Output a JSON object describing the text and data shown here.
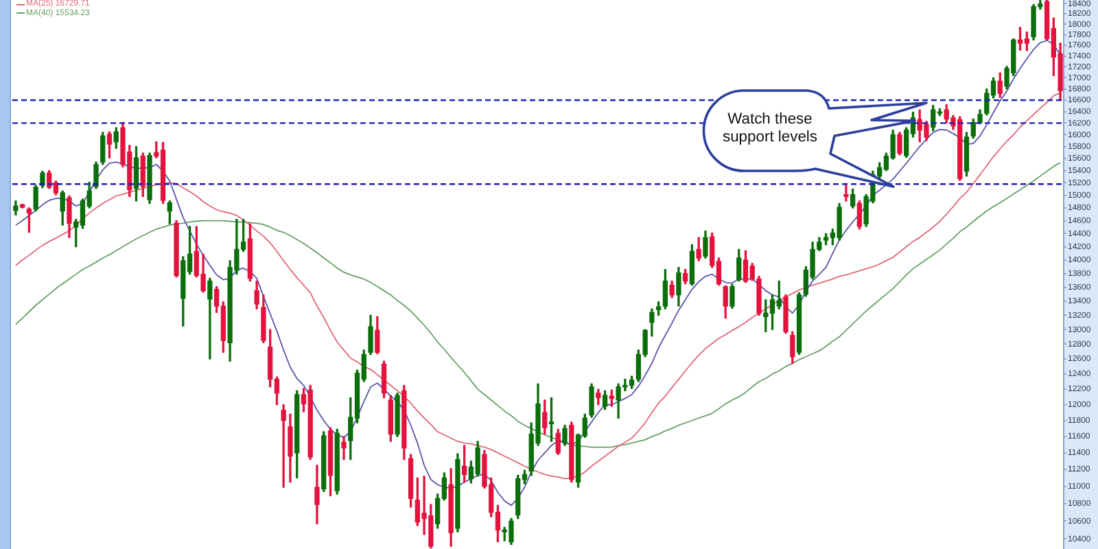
{
  "chart_data": {
    "type": "candlestick",
    "categories": [
      null,
      null,
      null,
      null,
      null,
      null,
      null,
      null,
      null,
      null,
      null,
      null,
      null,
      null,
      null,
      null,
      null,
      null,
      null,
      null,
      null,
      null,
      null,
      null,
      null,
      null,
      null,
      null,
      null,
      null,
      null,
      null,
      null,
      null,
      null,
      null,
      null,
      null,
      null,
      null,
      null,
      null,
      null,
      null,
      null,
      null,
      null,
      null,
      null,
      null,
      null,
      null,
      null,
      null,
      null,
      null,
      null,
      null,
      null,
      null,
      null,
      null,
      null,
      null,
      null,
      null,
      null,
      null,
      null,
      null,
      null,
      null,
      null,
      null,
      null,
      null,
      null,
      null,
      null,
      null,
      null,
      null,
      null,
      null,
      null,
      null,
      null,
      null,
      null,
      null,
      null,
      null,
      null,
      null,
      null,
      null,
      null,
      null,
      null,
      null,
      null,
      null,
      null,
      null,
      null,
      null,
      null,
      null,
      null,
      null,
      null,
      null,
      null,
      null,
      null,
      null,
      null,
      null,
      null,
      null,
      null,
      null,
      null,
      null,
      null,
      null,
      null,
      null,
      null,
      null,
      null,
      null,
      null,
      null,
      null,
      null,
      null,
      null,
      null,
      null,
      null,
      null,
      null,
      null,
      null,
      null,
      null,
      null,
      null,
      null,
      null,
      null,
      null,
      null,
      null,
      null,
      null
    ],
    "ohlc": [
      [
        14760,
        14910,
        14690,
        14830
      ],
      [
        14850,
        14860,
        14800,
        14810
      ],
      [
        14780,
        14800,
        14420,
        14720
      ],
      [
        14780,
        15160,
        14750,
        15130
      ],
      [
        15160,
        15390,
        15120,
        15360
      ],
      [
        15360,
        15400,
        15110,
        15130
      ],
      [
        15200,
        15230,
        15010,
        15040
      ],
      [
        14750,
        15070,
        14530,
        15040
      ],
      [
        14960,
        14990,
        14340,
        14560
      ],
      [
        14500,
        14620,
        14200,
        14580
      ],
      [
        14530,
        14940,
        14480,
        14910
      ],
      [
        14830,
        15210,
        14800,
        15070
      ],
      [
        15140,
        15540,
        15110,
        15500
      ],
      [
        15540,
        16040,
        15500,
        15980
      ],
      [
        16010,
        16050,
        15610,
        15840
      ],
      [
        15880,
        16120,
        15770,
        16050
      ],
      [
        16120,
        16210,
        15460,
        15500
      ],
      [
        15710,
        15820,
        14980,
        15090
      ],
      [
        15110,
        15800,
        14910,
        15610
      ],
      [
        15640,
        15690,
        14980,
        15140
      ],
      [
        14930,
        15690,
        14870,
        15650
      ],
      [
        15700,
        15880,
        15610,
        15640
      ],
      [
        15740,
        15870,
        14870,
        14920
      ],
      [
        14750,
        14910,
        14550,
        14880
      ],
      [
        14560,
        14600,
        13750,
        13770
      ],
      [
        13440,
        14050,
        13050,
        13990
      ],
      [
        13830,
        14510,
        13790,
        14090
      ],
      [
        14130,
        14510,
        13750,
        13770
      ],
      [
        13790,
        14090,
        13530,
        13550
      ],
      [
        13430,
        13730,
        12600,
        13690
      ],
      [
        13570,
        13610,
        13240,
        13330
      ],
      [
        13330,
        13390,
        12690,
        12850
      ],
      [
        12820,
        13990,
        12570,
        13890
      ],
      [
        13850,
        14620,
        13790,
        14160
      ],
      [
        14160,
        14620,
        14130,
        14270
      ],
      [
        14320,
        14550,
        13690,
        13730
      ],
      [
        13550,
        13690,
        13290,
        13360
      ],
      [
        13310,
        13490,
        12820,
        12850
      ],
      [
        12760,
        13000,
        12230,
        12330
      ],
      [
        12330,
        12360,
        12000,
        12150
      ],
      [
        11930,
        12000,
        10990,
        11800
      ],
      [
        11720,
        11880,
        11050,
        11360
      ],
      [
        11400,
        12180,
        11100,
        12130
      ],
      [
        12130,
        12210,
        11910,
        12010
      ],
      [
        12190,
        12250,
        11320,
        11350
      ],
      [
        10990,
        11250,
        10570,
        10790
      ],
      [
        10970,
        11660,
        10940,
        11610
      ],
      [
        11670,
        11710,
        10890,
        11130
      ],
      [
        10950,
        11690,
        10910,
        11640
      ],
      [
        11530,
        11600,
        11320,
        11460
      ],
      [
        11550,
        12090,
        11320,
        11840
      ],
      [
        11830,
        12450,
        11770,
        12410
      ],
      [
        12330,
        12720,
        12300,
        12660
      ],
      [
        12690,
        13200,
        12660,
        13040
      ],
      [
        12990,
        13180,
        12670,
        12690
      ],
      [
        12530,
        12570,
        12090,
        12150
      ],
      [
        12060,
        12120,
        11540,
        11630
      ],
      [
        11630,
        12150,
        11600,
        12120
      ],
      [
        12180,
        12250,
        11320,
        11460
      ],
      [
        11330,
        11380,
        10760,
        10860
      ],
      [
        10840,
        11100,
        10550,
        10590
      ],
      [
        10690,
        11120,
        10450,
        10630
      ],
      [
        10660,
        10790,
        10300,
        10320
      ],
      [
        10570,
        10910,
        10520,
        10860
      ],
      [
        10860,
        11160,
        10840,
        11100
      ],
      [
        11020,
        11210,
        10320,
        10470
      ],
      [
        10520,
        11390,
        10480,
        11320
      ],
      [
        11240,
        11490,
        11050,
        11140
      ],
      [
        11090,
        11300,
        11040,
        11230
      ],
      [
        11150,
        11540,
        11120,
        11460
      ],
      [
        11380,
        11430,
        10980,
        11000
      ],
      [
        11020,
        11100,
        10650,
        10700
      ],
      [
        10700,
        10780,
        10370,
        10500
      ],
      [
        10480,
        10530,
        10380,
        10500
      ],
      [
        10370,
        10630,
        10340,
        10600
      ],
      [
        10670,
        11130,
        10630,
        11090
      ],
      [
        11080,
        11190,
        11030,
        11140
      ],
      [
        11180,
        11770,
        11130,
        11630
      ],
      [
        11520,
        12270,
        11490,
        12010
      ],
      [
        11900,
        12060,
        11630,
        11710
      ],
      [
        11760,
        12090,
        11540,
        11780
      ],
      [
        11640,
        11690,
        11380,
        11400
      ],
      [
        11520,
        11740,
        11490,
        11700
      ],
      [
        11740,
        11780,
        11050,
        11080
      ],
      [
        11050,
        11630,
        10990,
        11620
      ],
      [
        11610,
        11880,
        11590,
        11830
      ],
      [
        11870,
        12270,
        11840,
        12230
      ],
      [
        12150,
        12200,
        12000,
        12090
      ],
      [
        11980,
        12180,
        11940,
        12120
      ],
      [
        12110,
        12190,
        11980,
        12080
      ],
      [
        12060,
        12270,
        11830,
        12230
      ],
      [
        12230,
        12330,
        12180,
        12250
      ],
      [
        12250,
        12370,
        12210,
        12320
      ],
      [
        12330,
        12720,
        12300,
        12660
      ],
      [
        12660,
        13000,
        12630,
        12990
      ],
      [
        13100,
        13290,
        12910,
        13240
      ],
      [
        13280,
        13390,
        13200,
        13320
      ],
      [
        13330,
        13860,
        13290,
        13690
      ],
      [
        13630,
        13690,
        13450,
        13490
      ],
      [
        13490,
        13890,
        13330,
        13810
      ],
      [
        13800,
        13860,
        13650,
        13690
      ],
      [
        13650,
        14230,
        13630,
        14130
      ],
      [
        14160,
        14340,
        13990,
        14030
      ],
      [
        14060,
        14440,
        14030,
        14340
      ],
      [
        14350,
        14410,
        13890,
        13920
      ],
      [
        13980,
        14030,
        13630,
        13650
      ],
      [
        13610,
        13620,
        13160,
        13330
      ],
      [
        13330,
        13640,
        13300,
        13610
      ],
      [
        13710,
        14160,
        13690,
        14030
      ],
      [
        14000,
        14140,
        13670,
        13690
      ],
      [
        13910,
        13950,
        13700,
        13720
      ],
      [
        13720,
        13760,
        13200,
        13230
      ],
      [
        13180,
        13420,
        12970,
        13230
      ],
      [
        13230,
        13490,
        13000,
        13420
      ],
      [
        13330,
        13690,
        13290,
        13410
      ],
      [
        13460,
        13490,
        12950,
        12970
      ],
      [
        12920,
        12970,
        12540,
        12630
      ],
      [
        12690,
        13520,
        12660,
        13490
      ],
      [
        13500,
        13900,
        13470,
        13850
      ],
      [
        13750,
        14270,
        13720,
        14160
      ],
      [
        14160,
        14340,
        14140,
        14270
      ],
      [
        14300,
        14400,
        14230,
        14340
      ],
      [
        14340,
        14470,
        14230,
        14410
      ],
      [
        14340,
        14870,
        14300,
        14810
      ],
      [
        15010,
        15190,
        14910,
        14980
      ],
      [
        14830,
        15100,
        14800,
        15010
      ],
      [
        14870,
        14910,
        14470,
        14510
      ],
      [
        14550,
        15010,
        14510,
        14980
      ],
      [
        14910,
        15390,
        14880,
        15330
      ],
      [
        15310,
        15530,
        15280,
        15450
      ],
      [
        15420,
        15690,
        15400,
        15640
      ],
      [
        15610,
        16080,
        15590,
        16000
      ],
      [
        16000,
        16040,
        15660,
        15690
      ],
      [
        15650,
        16120,
        15620,
        16080
      ],
      [
        16020,
        16390,
        15960,
        16290
      ],
      [
        16260,
        16430,
        15880,
        16080
      ],
      [
        16180,
        16230,
        15900,
        15960
      ],
      [
        16130,
        16510,
        16070,
        16430
      ],
      [
        16370,
        16450,
        16330,
        16390
      ],
      [
        16430,
        16520,
        16200,
        16270
      ],
      [
        16290,
        16330,
        16090,
        16150
      ],
      [
        16260,
        16310,
        15240,
        15270
      ],
      [
        15390,
        16040,
        15310,
        15960
      ],
      [
        15980,
        16270,
        15940,
        16210
      ],
      [
        16210,
        16430,
        16190,
        16350
      ],
      [
        16370,
        16800,
        16340,
        16720
      ],
      [
        16690,
        17000,
        16640,
        16940
      ],
      [
        16940,
        17090,
        16650,
        16720
      ],
      [
        16850,
        17210,
        16800,
        17170
      ],
      [
        17090,
        17720,
        17040,
        17700
      ],
      [
        17700,
        17940,
        17510,
        17640
      ],
      [
        17720,
        17850,
        17500,
        17640
      ],
      [
        17760,
        18380,
        17700,
        18340
      ],
      [
        18340,
        18460,
        18290,
        18390
      ],
      [
        18440,
        18470,
        17700,
        17720
      ],
      [
        17920,
        18120,
        17040,
        17380
      ],
      [
        17440,
        17640,
        16610,
        16770
      ]
    ],
    "colors": [
      "#0b6e0b",
      "#e2143e",
      "#e2143e",
      "#0b6e0b",
      "#0b6e0b",
      "#e2143e",
      "#e2143e",
      "#0b6e0b",
      "#e2143e",
      "#0b6e0b",
      "#0b6e0b",
      "#0b6e0b",
      "#0b6e0b",
      "#0b6e0b",
      "#e2143e",
      "#0b6e0b",
      "#e2143e",
      "#e2143e",
      "#0b6e0b",
      "#e2143e",
      "#0b6e0b",
      "#e2143e",
      "#e2143e",
      "#0b6e0b",
      "#e2143e",
      "#0b6e0b",
      "#0b6e0b",
      "#e2143e",
      "#e2143e",
      "#0b6e0b",
      "#e2143e",
      "#e2143e",
      "#0b6e0b",
      "#0b6e0b",
      "#0b6e0b",
      "#e2143e",
      "#e2143e",
      "#e2143e",
      "#e2143e",
      "#e2143e",
      "#e2143e",
      "#e2143e",
      "#0b6e0b",
      "#e2143e",
      "#e2143e",
      "#e2143e",
      "#0b6e0b",
      "#e2143e",
      "#0b6e0b",
      "#e2143e",
      "#0b6e0b",
      "#0b6e0b",
      "#0b6e0b",
      "#0b6e0b",
      "#e2143e",
      "#e2143e",
      "#e2143e",
      "#0b6e0b",
      "#e2143e",
      "#e2143e",
      "#e2143e",
      "#e2143e",
      "#e2143e",
      "#0b6e0b",
      "#0b6e0b",
      "#e2143e",
      "#0b6e0b",
      "#e2143e",
      "#0b6e0b",
      "#0b6e0b",
      "#e2143e",
      "#e2143e",
      "#e2143e",
      "#0b6e0b",
      "#0b6e0b",
      "#0b6e0b",
      "#0b6e0b",
      "#0b6e0b",
      "#0b6e0b",
      "#e2143e",
      "#0b6e0b",
      "#e2143e",
      "#0b6e0b",
      "#e2143e",
      "#0b6e0b",
      "#0b6e0b",
      "#0b6e0b",
      "#e2143e",
      "#0b6e0b",
      "#e2143e",
      "#0b6e0b",
      "#0b6e0b",
      "#0b6e0b",
      "#0b6e0b",
      "#0b6e0b",
      "#0b6e0b",
      "#0b6e0b",
      "#0b6e0b",
      "#e2143e",
      "#0b6e0b",
      "#e2143e",
      "#0b6e0b",
      "#e2143e",
      "#0b6e0b",
      "#e2143e",
      "#e2143e",
      "#e2143e",
      "#0b6e0b",
      "#0b6e0b",
      "#e2143e",
      "#e2143e",
      "#e2143e",
      "#0b6e0b",
      "#0b6e0b",
      "#0b6e0b",
      "#e2143e",
      "#e2143e",
      "#0b6e0b",
      "#0b6e0b",
      "#0b6e0b",
      "#0b6e0b",
      "#0b6e0b",
      "#0b6e0b",
      "#0b6e0b",
      "#e2143e",
      "#0b6e0b",
      "#e2143e",
      "#0b6e0b",
      "#0b6e0b",
      "#0b6e0b",
      "#0b6e0b",
      "#0b6e0b",
      "#e2143e",
      "#0b6e0b",
      "#0b6e0b",
      "#e2143e",
      "#e2143e",
      "#0b6e0b",
      "#0b6e0b",
      "#e2143e",
      "#e2143e",
      "#e2143e",
      "#0b6e0b",
      "#0b6e0b",
      "#0b6e0b",
      "#0b6e0b",
      "#0b6e0b",
      "#e2143e",
      "#0b6e0b",
      "#0b6e0b",
      "#e2143e",
      "#e2143e",
      "#0b6e0b",
      "#0b6e0b",
      "#e2143e",
      "#e2143e",
      "#e2143e"
    ],
    "series": [
      {
        "type": "line",
        "color": "#5656ac",
        "values": [
          14530,
          14600,
          14680,
          14760,
          14850,
          14920,
          14950,
          14950,
          14910,
          14830,
          14870,
          15050,
          15250,
          15410,
          15520,
          15540,
          15510,
          15460,
          15440,
          15440,
          15450,
          15500,
          15390,
          15230,
          14940,
          14650,
          14440,
          14240,
          14070,
          13920,
          13780,
          13710,
          13730,
          13850,
          13880,
          13830,
          13730,
          13470,
          13220,
          12980,
          12720,
          12490,
          12340,
          12250,
          12100,
          11930,
          11800,
          11690,
          11620,
          11590,
          11660,
          11840,
          12040,
          12230,
          12280,
          12200,
          12110,
          12040,
          11930,
          11740,
          11520,
          11250,
          11080,
          11020,
          10990,
          10980,
          11000,
          11050,
          11090,
          11130,
          11140,
          11070,
          10930,
          10830,
          10780,
          10860,
          10990,
          11170,
          11310,
          11400,
          11490,
          11550,
          11520,
          11500,
          11540,
          11660,
          11780,
          11900,
          12000,
          12000,
          12040,
          12080,
          12130,
          12240,
          12380,
          12540,
          12750,
          12920,
          13090,
          13270,
          13420,
          13570,
          13680,
          13760,
          13790,
          13720,
          13670,
          13660,
          13720,
          13720,
          13720,
          13640,
          13550,
          13490,
          13460,
          13320,
          13230,
          13350,
          13540,
          13690,
          13790,
          13890,
          14100,
          14300,
          14450,
          14580,
          14700,
          14830,
          15000,
          15080,
          15170,
          15260,
          15390,
          15520,
          15660,
          15800,
          15920,
          16040,
          16090,
          16080,
          16020,
          15950,
          15840,
          15850,
          15980,
          16170,
          16380,
          16590,
          16760,
          16980,
          17170,
          17350,
          17520,
          17650,
          17690,
          17620,
          17420
        ]
      },
      {
        "type": "line",
        "name": "MA(25) 16729.71",
        "color": "#e0687a",
        "values": [
          13920,
          14000,
          14070,
          14150,
          14220,
          14280,
          14330,
          14390,
          14440,
          14530,
          14630,
          14720,
          14800,
          14870,
          14930,
          14990,
          15020,
          15050,
          15080,
          15110,
          15140,
          15170,
          15190,
          15200,
          15190,
          15120,
          15060,
          14990,
          14900,
          14830,
          14770,
          14740,
          14720,
          14680,
          14610,
          14530,
          14440,
          14360,
          14260,
          14130,
          13990,
          13860,
          13740,
          13630,
          13520,
          13330,
          13170,
          12990,
          12830,
          12720,
          12610,
          12560,
          12500,
          12460,
          12390,
          12320,
          12250,
          12180,
          12110,
          12020,
          11920,
          11830,
          11750,
          11660,
          11620,
          11580,
          11540,
          11520,
          11510,
          11490,
          11470,
          11440,
          11400,
          11360,
          11320,
          11280,
          11240,
          11200,
          11170,
          11140,
          11120,
          11110,
          11090,
          11100,
          11120,
          11170,
          11240,
          11300,
          11360,
          11420,
          11480,
          11530,
          11580,
          11670,
          11770,
          11900,
          12020,
          12110,
          12220,
          12330,
          12440,
          12550,
          12650,
          12740,
          12810,
          12880,
          12930,
          12990,
          13040,
          13100,
          13170,
          13230,
          13290,
          13350,
          13410,
          13460,
          13510,
          13560,
          13600,
          13630,
          13660,
          13690,
          13720,
          13760,
          13780,
          13810,
          13840,
          13870,
          13900,
          13940,
          13990,
          14040,
          14120,
          14200,
          14280,
          14340,
          14420,
          14500,
          14590,
          14700,
          14820,
          14950,
          15050,
          15190,
          15330,
          15480,
          15630,
          15760,
          15890,
          16000,
          16130,
          16240,
          16350,
          16460,
          16560,
          16680,
          16730
        ]
      },
      {
        "type": "line",
        "name": "MA(40) 15534.23",
        "color": "#68a068",
        "values": [
          13070,
          13160,
          13250,
          13340,
          13420,
          13500,
          13580,
          13650,
          13720,
          13790,
          13860,
          13910,
          13970,
          14030,
          14080,
          14140,
          14200,
          14260,
          14320,
          14370,
          14420,
          14470,
          14500,
          14530,
          14550,
          14560,
          14580,
          14590,
          14600,
          14600,
          14600,
          14600,
          14590,
          14580,
          14580,
          14570,
          14560,
          14540,
          14500,
          14450,
          14420,
          14370,
          14310,
          14250,
          14180,
          14110,
          14030,
          13960,
          13880,
          13820,
          13780,
          13750,
          13720,
          13670,
          13610,
          13550,
          13490,
          13410,
          13340,
          13260,
          13160,
          13060,
          12950,
          12830,
          12730,
          12620,
          12520,
          12420,
          12310,
          12200,
          12130,
          12060,
          11990,
          11920,
          11860,
          11790,
          11740,
          11700,
          11660,
          11620,
          11590,
          11560,
          11530,
          11500,
          11480,
          11480,
          11470,
          11470,
          11470,
          11470,
          11490,
          11500,
          11520,
          11540,
          11560,
          11600,
          11630,
          11670,
          11700,
          11740,
          11770,
          11800,
          11830,
          11860,
          11890,
          11950,
          12010,
          12060,
          12100,
          12160,
          12230,
          12300,
          12340,
          12400,
          12440,
          12500,
          12540,
          12590,
          12630,
          12670,
          12710,
          12770,
          12840,
          12900,
          12990,
          13080,
          13170,
          13260,
          13340,
          13420,
          13500,
          13580,
          13680,
          13780,
          13870,
          13940,
          14010,
          14080,
          14150,
          14240,
          14330,
          14430,
          14500,
          14590,
          14670,
          14750,
          14820,
          14880,
          14950,
          15020,
          15090,
          15160,
          15230,
          15310,
          15390,
          15470,
          15530
        ]
      }
    ],
    "ylim": [
      10290,
      18470
    ],
    "yticks": [
      10400,
      10600,
      10800,
      11000,
      11200,
      11400,
      11600,
      11800,
      12000,
      12200,
      12400,
      12600,
      12800,
      13000,
      13200,
      13400,
      13600,
      13800,
      14000,
      14200,
      14400,
      14600,
      14800,
      15000,
      15200,
      15400,
      15600,
      15800,
      16000,
      16200,
      16400,
      16600,
      16800,
      17000,
      17200,
      17400,
      17600,
      17800,
      18000,
      18200,
      18400
    ],
    "log": true,
    "legend": "top left",
    "marker": "none",
    "tick_labels": "y",
    "ref_lines": [
      {
        "axis": "y",
        "value": 16600,
        "color": "#1c1cb8",
        "line_style": "dashed"
      },
      {
        "axis": "y",
        "value": 16200,
        "color": "#1c1cb8",
        "line_style": "dashed"
      },
      {
        "axis": "y",
        "value": 15180,
        "color": "#1c1cb8",
        "line_style": "dashed"
      }
    ],
    "annotations": [
      "Watch these support levels"
    ]
  }
}
